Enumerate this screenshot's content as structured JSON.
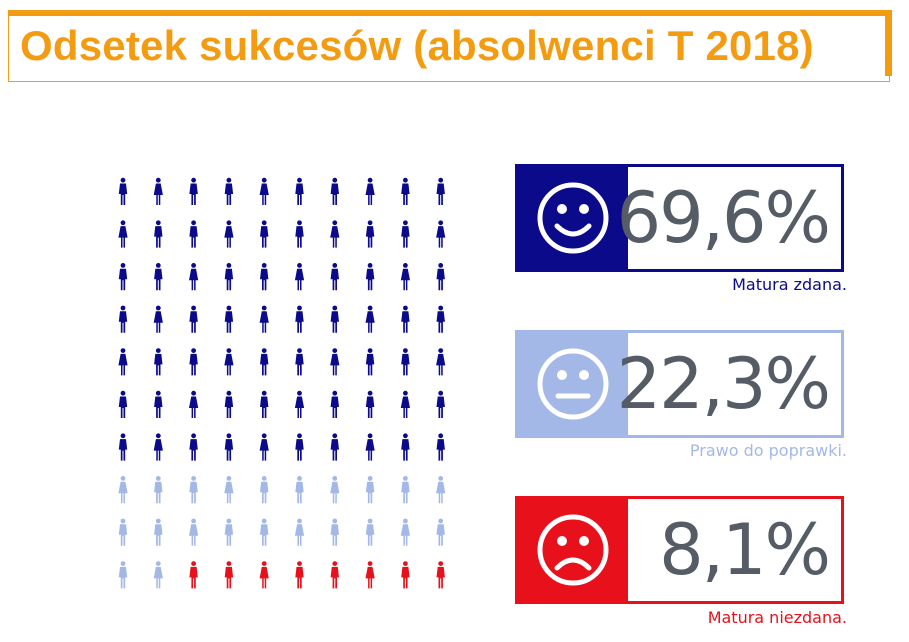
{
  "title": "Odsetek sukcesów (absolwenci T 2018)",
  "colors": {
    "accent": "#f39c12",
    "pass": "#0a0a8a",
    "retake": "#a3b8e6",
    "fail": "#e8101a"
  },
  "stats": [
    {
      "key": "pass",
      "value": "69,6%",
      "caption": "Matura zdana.",
      "icon": "smile-face-icon"
    },
    {
      "key": "retake",
      "value": "22,3%",
      "caption": "Prawo do poprawki.",
      "icon": "neutral-face-icon"
    },
    {
      "key": "fail",
      "value": "8,1%",
      "caption": "Matura niezdana.",
      "icon": "sad-face-icon"
    }
  ],
  "chart_data": {
    "type": "pictogram",
    "grid": {
      "rows": 10,
      "cols": 10
    },
    "categories": [
      "Matura zdana.",
      "Prawo do poprawki.",
      "Matura niezdana."
    ],
    "values": [
      69.6,
      22.3,
      8.1
    ],
    "icon_counts": [
      70,
      22,
      8
    ],
    "unit": "%"
  }
}
